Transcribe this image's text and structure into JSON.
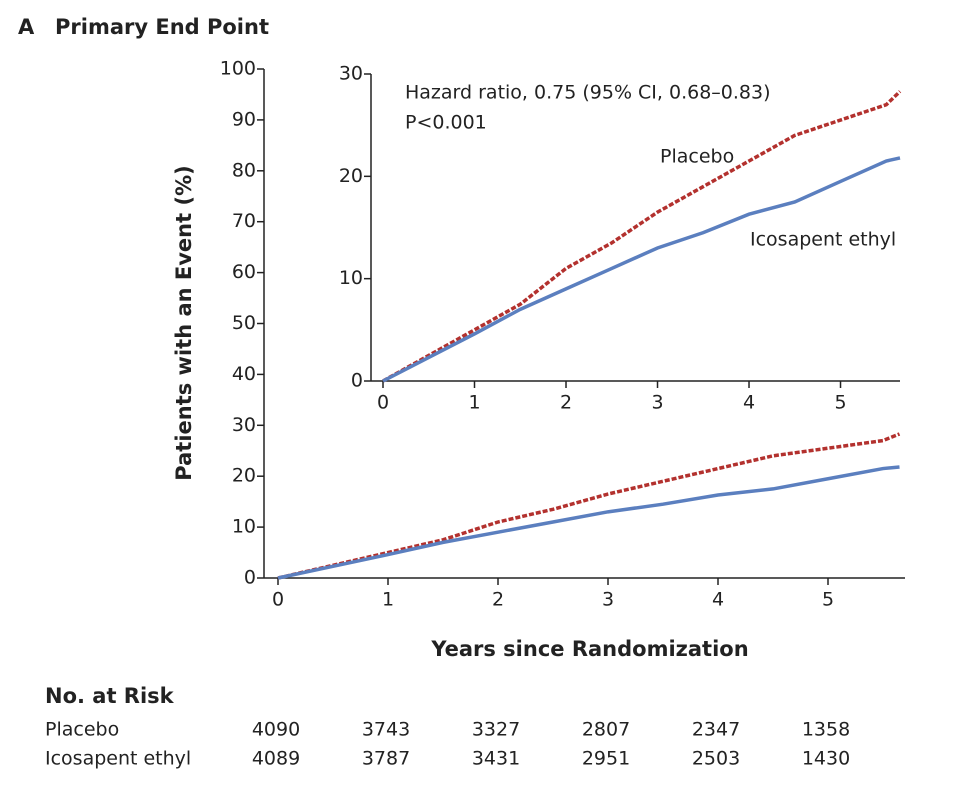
{
  "chart_data": [
    {
      "type": "line",
      "panel_label": "A",
      "title": "Primary End Point",
      "xlabel": "Years since Randomization",
      "ylabel": "Patients with an Event (%)",
      "x": [
        0,
        0.5,
        1,
        1.5,
        2,
        2.5,
        3,
        3.5,
        4,
        4.5,
        5,
        5.5,
        5.65
      ],
      "series": [
        {
          "color": "#b3312e",
          "dashed": true,
          "values": [
            0,
            2.5,
            5,
            7.5,
            11,
            13.5,
            16.5,
            19,
            21.5,
            24,
            25.5,
            27,
            28.3
          ]
        },
        {
          "color": "#5b7fbf",
          "dashed": false,
          "values": [
            0,
            2.3,
            4.6,
            7,
            9,
            11,
            13,
            14.5,
            16.3,
            17.5,
            19.5,
            21.5,
            21.8
          ]
        }
      ],
      "xlim": [
        0,
        5.7
      ],
      "ylim": [
        0,
        100
      ],
      "xticks": [
        0,
        1,
        2,
        3,
        4,
        5
      ],
      "yticks": [
        0,
        10,
        20,
        30,
        40,
        50,
        60,
        70,
        80,
        90,
        100
      ]
    },
    {
      "type": "line",
      "annotations": [
        "Hazard ratio, 0.75 (95% CI, 0.68–0.83)",
        "P<0.001"
      ],
      "x": [
        0,
        0.5,
        1,
        1.5,
        2,
        2.5,
        3,
        3.5,
        4,
        4.5,
        5,
        5.5,
        5.65
      ],
      "series": [
        {
          "name": "Placebo",
          "color": "#b3312e",
          "dashed": true,
          "values": [
            0,
            2.5,
            5,
            7.5,
            11,
            13.5,
            16.5,
            19,
            21.5,
            24,
            25.5,
            27,
            28.3
          ]
        },
        {
          "name": "Icosapent ethyl",
          "color": "#5b7fbf",
          "dashed": false,
          "values": [
            0,
            2.3,
            4.6,
            7,
            9,
            11,
            13,
            14.5,
            16.3,
            17.5,
            19.5,
            21.5,
            21.8
          ]
        }
      ],
      "xlim": [
        0,
        5.65
      ],
      "ylim": [
        0,
        30
      ],
      "xticks": [
        0,
        1,
        2,
        3,
        4,
        5
      ],
      "yticks": [
        0,
        10,
        20,
        30
      ]
    }
  ],
  "risk_table": {
    "title": "No. at Risk",
    "rows": [
      {
        "label": "Placebo",
        "values": [
          4090,
          3743,
          3327,
          2807,
          2347,
          1358
        ]
      },
      {
        "label": "Icosapent ethyl",
        "values": [
          4089,
          3787,
          3431,
          2951,
          2503,
          1430
        ]
      }
    ]
  }
}
